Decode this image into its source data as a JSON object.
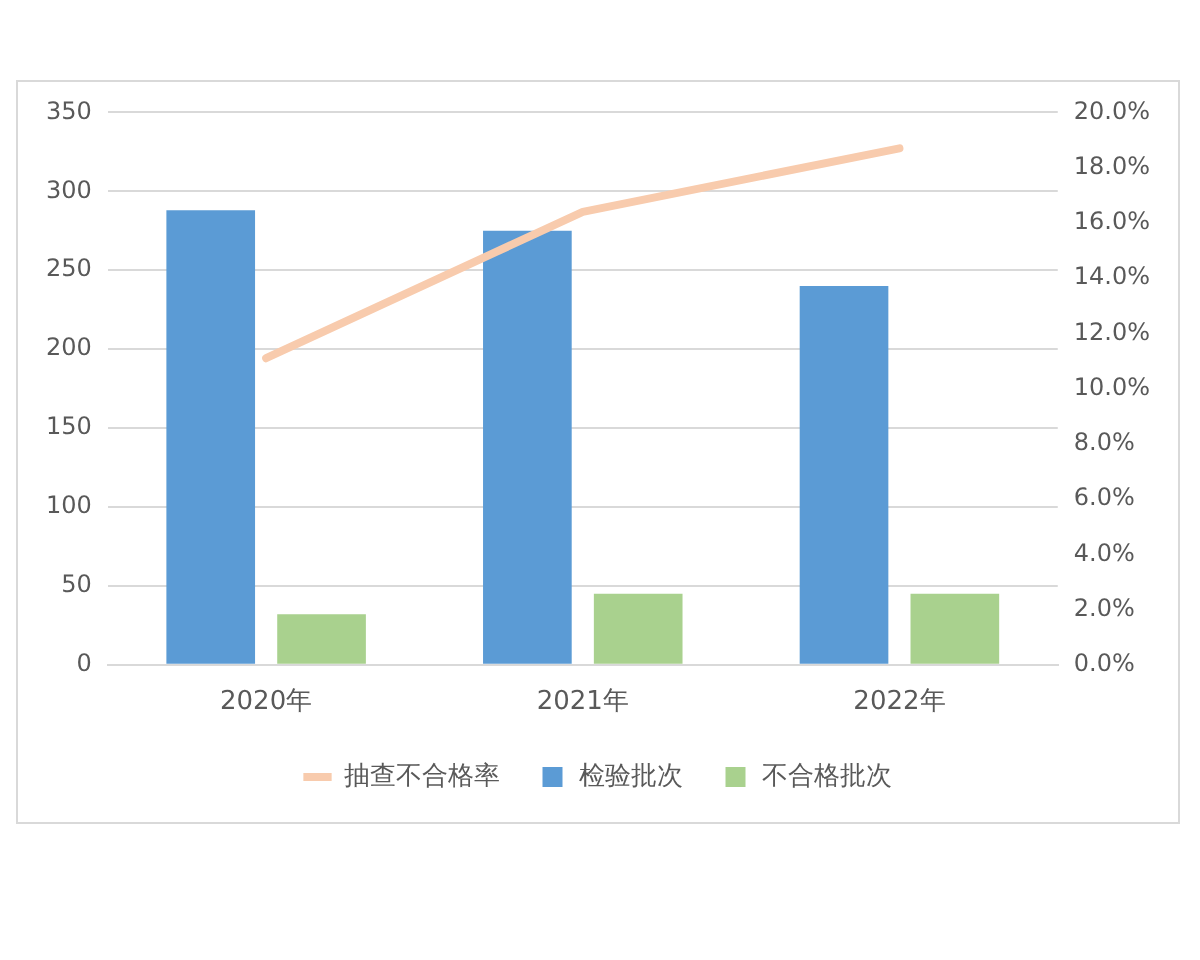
{
  "chart_data": {
    "type": "bar",
    "categories": [
      "2020年",
      "2021年",
      "2022年"
    ],
    "series": [
      {
        "name": "检验批次",
        "color": "#5b9bd5",
        "values": [
          288,
          275,
          240
        ]
      },
      {
        "name": "不合格批次",
        "color": "#a9d18e",
        "values": [
          32,
          45,
          45
        ]
      },
      {
        "name": "抽查不合格率",
        "type": "line",
        "axis": "y2",
        "color": "#f8cbad",
        "values": [
          11.1,
          16.4,
          18.7
        ]
      }
    ],
    "ylim": [
      0,
      350
    ],
    "yticks": [
      0,
      50,
      100,
      150,
      200,
      250,
      300,
      350
    ],
    "y2lim": [
      0,
      20
    ],
    "y2ticks": [
      {
        "value": 0,
        "label": "0.0%"
      },
      {
        "value": 2,
        "label": "2.0%"
      },
      {
        "value": 4,
        "label": "4.0%"
      },
      {
        "value": 6,
        "label": "6.0%"
      },
      {
        "value": 8,
        "label": "8.0%"
      },
      {
        "value": 10,
        "label": "10.0%"
      },
      {
        "value": 12,
        "label": "12.0%"
      },
      {
        "value": 14,
        "label": "14.0%"
      },
      {
        "value": 16,
        "label": "16.0%"
      },
      {
        "value": 18,
        "label": "18.0%"
      },
      {
        "value": 20,
        "label": "20.0%"
      }
    ],
    "grid": "y",
    "legend": "bottom",
    "marker": "none",
    "line_style": "solid"
  }
}
